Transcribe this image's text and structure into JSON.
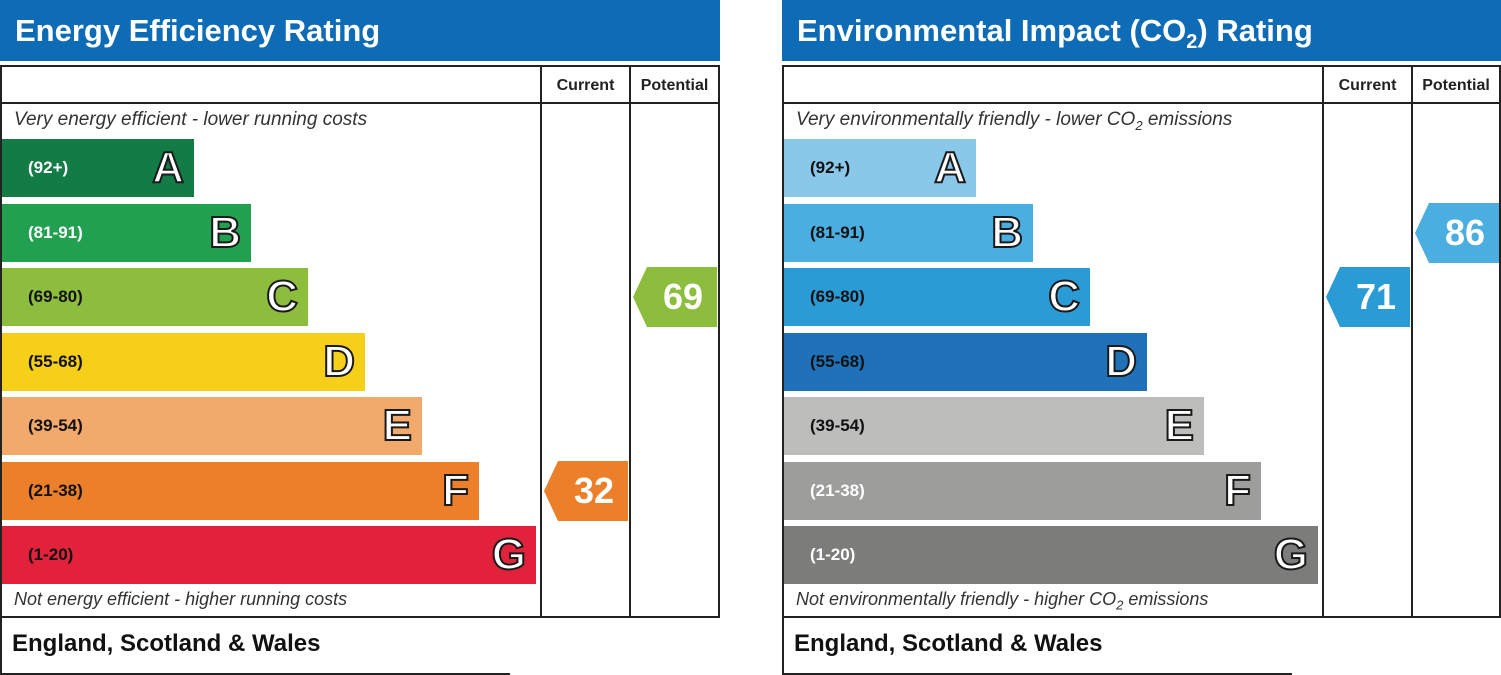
{
  "chart_data": [
    {
      "type": "table",
      "title": "Energy Efficiency Rating",
      "columns": [
        "Current",
        "Potential"
      ],
      "top_note": "Very energy efficient - lower running costs",
      "bottom_note": "Not energy efficient - higher running costs",
      "bands": [
        {
          "letter": "A",
          "range": "(92+)",
          "color": "#127b46",
          "text_color": "#ffffff"
        },
        {
          "letter": "B",
          "range": "(81-91)",
          "color": "#21a04f",
          "text_color": "#ffffff"
        },
        {
          "letter": "C",
          "range": "(69-80)",
          "color": "#8dbd3d",
          "text_color": "#111111"
        },
        {
          "letter": "D",
          "range": "(55-68)",
          "color": "#f5cf18",
          "text_color": "#111111"
        },
        {
          "letter": "E",
          "range": "(39-54)",
          "color": "#f2a96c",
          "text_color": "#111111"
        },
        {
          "letter": "F",
          "range": "(21-38)",
          "color": "#ec7f2a",
          "text_color": "#111111"
        },
        {
          "letter": "G",
          "range": "(1-20)",
          "color": "#e2213b",
          "text_color": "#111111"
        }
      ],
      "current": {
        "value": 32,
        "band": "F",
        "color": "#ec7f2a"
      },
      "potential": {
        "value": 69,
        "band": "C",
        "color": "#8dbd3d"
      },
      "region": "England, Scotland & Wales"
    },
    {
      "type": "table",
      "title_main": "Environmental Impact (CO",
      "title_sub": "2",
      "title_end": ") Rating",
      "columns": [
        "Current",
        "Potential"
      ],
      "top_note_main": "Very environmentally friendly - lower CO",
      "top_note_sub": "2",
      "top_note_end": " emissions",
      "bottom_note_main": "Not environmentally friendly - higher CO",
      "bottom_note_sub": "2",
      "bottom_note_end": " emissions",
      "bands": [
        {
          "letter": "A",
          "range": "(92+)",
          "color": "#8ac8ea",
          "text_color": "#111111"
        },
        {
          "letter": "B",
          "range": "(81-91)",
          "color": "#4baee0",
          "text_color": "#111111"
        },
        {
          "letter": "C",
          "range": "(69-80)",
          "color": "#2b9bd6",
          "text_color": "#111111"
        },
        {
          "letter": "D",
          "range": "(55-68)",
          "color": "#1f72b8",
          "text_color": "#111111"
        },
        {
          "letter": "E",
          "range": "(39-54)",
          "color": "#bdbdbc",
          "text_color": "#111111"
        },
        {
          "letter": "F",
          "range": "(21-38)",
          "color": "#9d9d9c",
          "text_color": "#ffffff"
        },
        {
          "letter": "G",
          "range": "(1-20)",
          "color": "#7c7c7b",
          "text_color": "#ffffff"
        }
      ],
      "current": {
        "value": 71,
        "band": "C",
        "color": "#2b9bd6"
      },
      "potential": {
        "value": 86,
        "band": "B",
        "color": "#4baee0"
      },
      "region": "England, Scotland & Wales"
    }
  ]
}
